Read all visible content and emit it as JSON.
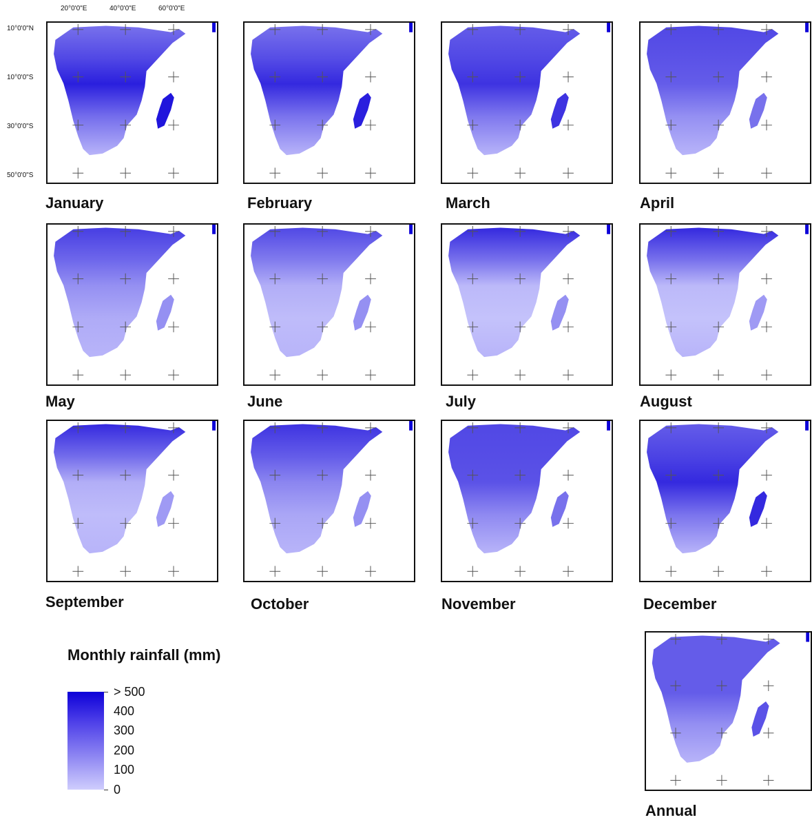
{
  "axes": {
    "x_labels": [
      "20°0'0\"E",
      "40°0'0\"E",
      "60°0'0\"E"
    ],
    "y_labels": [
      "10°0'0\"N",
      "10°0'0\"S",
      "30°0'0\"S",
      "50°0'0\"S"
    ]
  },
  "panels": [
    {
      "label": "January",
      "intensity": 0.85,
      "north_band": 0.45,
      "madagascar": 0.9
    },
    {
      "label": "February",
      "intensity": 0.8,
      "north_band": 0.45,
      "madagascar": 0.85
    },
    {
      "label": "March",
      "intensity": 0.75,
      "north_band": 0.55,
      "madagascar": 0.75
    },
    {
      "label": "April",
      "intensity": 0.55,
      "north_band": 0.65,
      "madagascar": 0.45
    },
    {
      "label": "May",
      "intensity": 0.3,
      "north_band": 0.7,
      "madagascar": 0.3
    },
    {
      "label": "June",
      "intensity": 0.15,
      "north_band": 0.65,
      "madagascar": 0.3
    },
    {
      "label": "July",
      "intensity": 0.1,
      "north_band": 0.8,
      "madagascar": 0.3
    },
    {
      "label": "August",
      "intensity": 0.1,
      "north_band": 0.8,
      "madagascar": 0.25
    },
    {
      "label": "September",
      "intensity": 0.15,
      "north_band": 0.8,
      "madagascar": 0.25
    },
    {
      "label": "October",
      "intensity": 0.35,
      "north_band": 0.75,
      "madagascar": 0.3
    },
    {
      "label": "November",
      "intensity": 0.6,
      "north_band": 0.65,
      "madagascar": 0.45
    },
    {
      "label": "December",
      "intensity": 0.8,
      "north_band": 0.55,
      "madagascar": 0.8
    },
    {
      "label": "Annual",
      "intensity": 0.55,
      "north_band": 0.55,
      "madagascar": 0.6
    }
  ],
  "legend": {
    "title": "Monthly rainfall (mm)",
    "ticks": [
      "> 500",
      "400",
      "300",
      "200",
      "100",
      "0"
    ],
    "color_max": "#0d00d8",
    "color_min": "#cfcdfd"
  }
}
